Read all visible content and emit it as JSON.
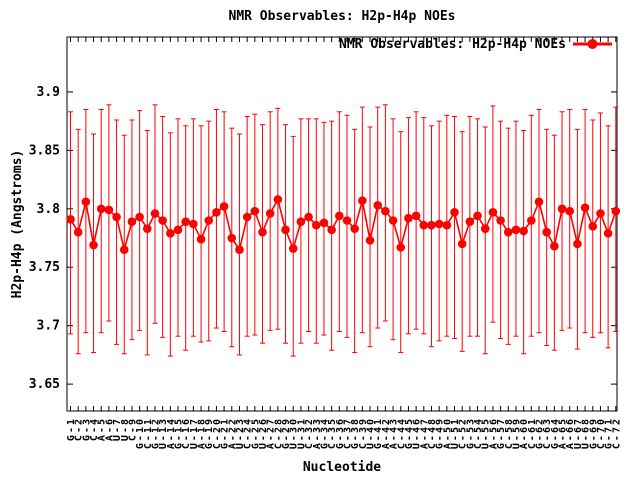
{
  "window": {
    "background": "#ffffff",
    "plot_border_color": "#000000"
  },
  "chart_data": {
    "type": "line",
    "title": "NMR Observables: H2p-H4p NOEs",
    "legend": {
      "label": "NMR Observables: H2p-H4p NOEs",
      "position": "top-right-inside",
      "marker": "filled-circle-on-line"
    },
    "xlabel": "Nucleotide",
    "ylabel": "H2p-H4p (Angstroms)",
    "ylim": [
      3.627,
      3.947
    ],
    "yticks": [
      3.65,
      3.7,
      3.75,
      3.8,
      3.85,
      3.9
    ],
    "ytick_labels": [
      "3.65",
      "3.7",
      "3.75",
      "3.8",
      "3.85",
      "3.9"
    ],
    "grid": false,
    "error_bars": true,
    "marker": "filled-circle",
    "color": "#ff0000",
    "gap_after_index": 35,
    "categories": [
      "G-1",
      "C-2",
      "G-3",
      "C-4",
      "A-5",
      "A-6",
      "U-7",
      "U-8",
      "C-9",
      "G-10",
      "C-11",
      "G-12",
      "U-13",
      "A-14",
      "G-15",
      "C-16",
      "U-17",
      "A-18",
      "G-19",
      "C-20",
      "G-21",
      "A-22",
      "U-23",
      "C-24",
      "G-25",
      "U-26",
      "A-27",
      "C-28",
      "G-29",
      "U-30",
      "U-31",
      "C-32",
      "A-33",
      "G-34",
      "C-35",
      "G-36",
      "C-37",
      "G-38",
      "C-39",
      "U-40",
      "G-41",
      "A-42",
      "A-43",
      "C-44",
      "G-45",
      "U-46",
      "A-47",
      "C-48",
      "G-49",
      "A-50",
      "U-51",
      "C-52",
      "G-53",
      "C-54",
      "U-55",
      "A-56",
      "G-57",
      "C-58",
      "U-59",
      "A-60",
      "C-61",
      "G-62",
      "C-63",
      "G-64",
      "A-65",
      "A-66",
      "U-67",
      "U-68",
      "G-69",
      "C-70",
      "G-71",
      "C-72"
    ],
    "series": [
      {
        "name": "NMR Observables: H2p-H4p NOEs",
        "values": [
          3.791,
          3.78,
          3.806,
          3.769,
          3.8,
          3.799,
          3.793,
          3.765,
          3.789,
          3.793,
          3.783,
          3.796,
          3.79,
          3.779,
          3.782,
          3.789,
          3.787,
          3.774,
          3.79,
          3.797,
          3.802,
          3.775,
          3.765,
          3.793,
          3.798,
          3.78,
          3.796,
          3.808,
          3.782,
          3.766,
          3.789,
          3.793,
          3.786,
          3.788,
          3.782,
          3.794,
          3.79,
          3.783,
          3.807,
          3.773,
          3.803,
          3.798,
          3.79,
          3.767,
          3.792,
          3.794,
          3.786,
          3.786,
          3.787,
          3.786,
          3.797,
          3.77,
          3.789,
          3.794,
          3.783,
          3.797,
          3.79,
          3.78,
          3.782,
          3.781,
          3.79,
          3.806,
          3.78,
          3.768,
          3.8,
          3.798,
          3.77,
          3.801,
          3.785,
          3.796,
          3.779,
          3.798
        ],
        "err_up": [
          0.092,
          0.088,
          0.079,
          0.095,
          0.085,
          0.09,
          0.083,
          0.098,
          0.087,
          0.091,
          0.084,
          0.093,
          0.089,
          0.086,
          0.095,
          0.082,
          0.09,
          0.097,
          0.085,
          0.088,
          0.081,
          0.094,
          0.099,
          0.086,
          0.083,
          0.092,
          0.087,
          0.078,
          0.09,
          0.096,
          0.088,
          0.084,
          0.091,
          0.086,
          0.093,
          0.089,
          0.09,
          0.085,
          0.08,
          0.097,
          0.084,
          0.091,
          0.087,
          0.099,
          0.086,
          0.089,
          0.092,
          0.085,
          0.088,
          0.094,
          0.082,
          0.096,
          0.09,
          0.083,
          0.087,
          0.091,
          0.085,
          0.089,
          0.093,
          0.086,
          0.09,
          0.079,
          0.088,
          0.095,
          0.083,
          0.087,
          0.098,
          0.084,
          0.091,
          0.086,
          0.092,
          0.089
        ],
        "err_down": [
          0.098,
          0.104,
          0.112,
          0.092,
          0.106,
          0.095,
          0.109,
          0.089,
          0.101,
          0.097,
          0.108,
          0.094,
          0.1,
          0.105,
          0.091,
          0.11,
          0.096,
          0.088,
          0.103,
          0.099,
          0.107,
          0.093,
          0.09,
          0.102,
          0.106,
          0.095,
          0.1,
          0.111,
          0.097,
          0.092,
          0.104,
          0.098,
          0.101,
          0.096,
          0.103,
          0.099,
          0.1,
          0.106,
          0.113,
          0.091,
          0.105,
          0.094,
          0.102,
          0.09,
          0.099,
          0.097,
          0.093,
          0.104,
          0.1,
          0.095,
          0.108,
          0.092,
          0.098,
          0.103,
          0.107,
          0.094,
          0.101,
          0.096,
          0.091,
          0.105,
          0.099,
          0.112,
          0.097,
          0.089,
          0.104,
          0.1,
          0.09,
          0.107,
          0.095,
          0.102,
          0.098,
          0.103
        ]
      }
    ]
  }
}
